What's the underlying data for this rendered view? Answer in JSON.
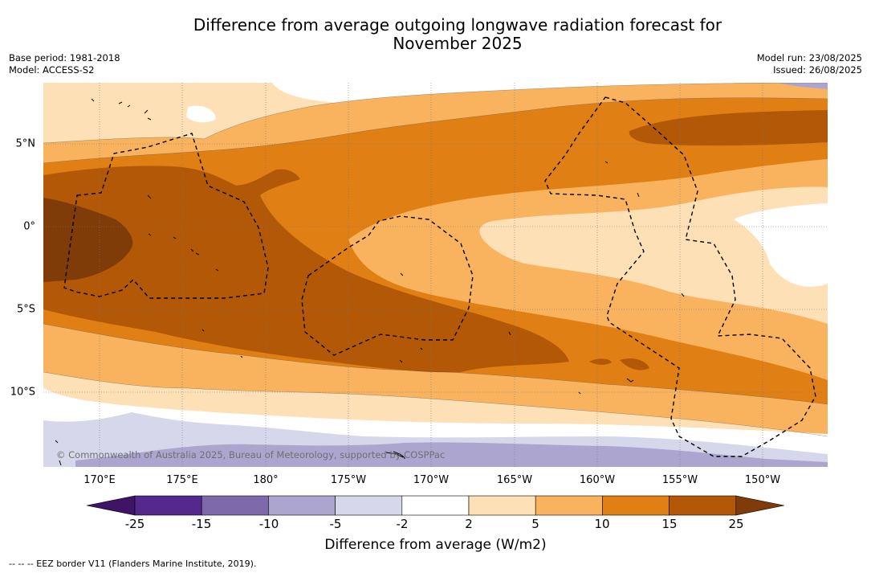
{
  "title": {
    "line1": "Difference from average outgoing longwave radiation forecast for",
    "line2": "November 2025"
  },
  "meta_left": {
    "base_period": "Base period: 1981-2018",
    "model": "Model: ACCESS-S2"
  },
  "meta_right": {
    "model_run": "Model run: 23/08/2025",
    "issued": "Issued: 26/08/2025"
  },
  "copyright": "© Commonwealth of Australia 2025, Bureau of Meteorology, supported by COSPPac",
  "lon_ticks": [
    "170°E",
    "175°E",
    "180°",
    "175°W",
    "170°W",
    "165°W",
    "160°W",
    "155°W",
    "150°W"
  ],
  "lat_ticks": [
    "5°N",
    "0°",
    "5°S",
    "10°S"
  ],
  "colorbar": {
    "labels": [
      "-25",
      "-15",
      "-10",
      "-5",
      "-2",
      "2",
      "5",
      "10",
      "15",
      "25"
    ],
    "colors": [
      "#3f1366",
      "#54288c",
      "#7e6aaa",
      "#aca5d0",
      "#d6d7ea",
      "#ffffff",
      "#fde0b5",
      "#f9b35f",
      "#e07f14",
      "#b35806",
      "#7f3b08"
    ],
    "title": "Difference from average (W/m2)"
  },
  "footnote": "--  --  -- EEZ border V11 (Flanders Marine Institute, 2019).",
  "map_colors": {
    "neg10": "#aca5d0",
    "neg5": "#d6d7ea",
    "zero": "#ffffff",
    "p2": "#fde0b5",
    "p5": "#f9b35f",
    "p10": "#e07f14",
    "p15": "#b35806",
    "p25": "#7f3b08"
  }
}
